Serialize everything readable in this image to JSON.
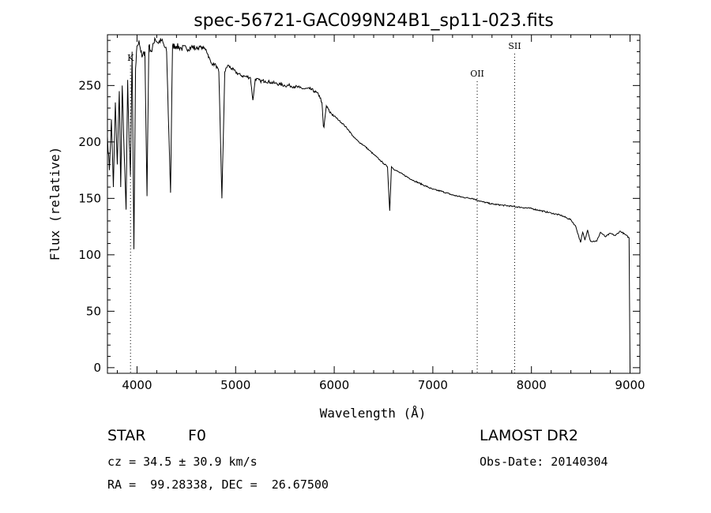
{
  "chart_data": {
    "type": "line",
    "title": "spec-56721-GAC099N24B1_sp11-023.fits",
    "xlabel": "Wavelength (Å)",
    "ylabel": "Flux (relative)",
    "xlim": [
      3700,
      9100
    ],
    "ylim": [
      -5,
      295
    ],
    "xticks": [
      4000,
      5000,
      6000,
      7000,
      8000,
      9000
    ],
    "yticks": [
      0,
      50,
      100,
      150,
      200,
      250
    ],
    "grid": false,
    "series": [
      {
        "x": [
          3700,
          3720,
          3740,
          3760,
          3780,
          3800,
          3820,
          3835,
          3850,
          3870,
          3889,
          3905,
          3920,
          3933,
          3950,
          3968,
          3985,
          4000,
          4020,
          4050,
          4080,
          4101,
          4120,
          4150,
          4180,
          4210,
          4250,
          4300,
          4340,
          4360,
          4400,
          4450,
          4500,
          4550,
          4600,
          4650,
          4700,
          4750,
          4800,
          4830,
          4861,
          4890,
          4920,
          4960,
          5000,
          5050,
          5100,
          5150,
          5175,
          5200,
          5250,
          5300,
          5350,
          5400,
          5450,
          5500,
          5550,
          5600,
          5650,
          5700,
          5750,
          5800,
          5850,
          5875,
          5890,
          5896,
          5920,
          5950,
          6000,
          6050,
          6100,
          6150,
          6200,
          6250,
          6300,
          6350,
          6400,
          6450,
          6500,
          6540,
          6563,
          6580,
          6620,
          6700,
          6800,
          6900,
          7000,
          7100,
          7200,
          7300,
          7400,
          7500,
          7600,
          7700,
          7800,
          7900,
          8000,
          8100,
          8200,
          8300,
          8400,
          8450,
          8498,
          8520,
          8542,
          8570,
          8600,
          8662,
          8700,
          8750,
          8800,
          8850,
          8900,
          8950,
          8990,
          9000
        ],
        "values": [
          205,
          175,
          220,
          160,
          235,
          180,
          245,
          160,
          250,
          190,
          140,
          255,
          200,
          170,
          280,
          105,
          265,
          285,
          290,
          275,
          280,
          152,
          285,
          280,
          292,
          288,
          290,
          280,
          155,
          285,
          285,
          283,
          283,
          284,
          283,
          284,
          282,
          270,
          268,
          262,
          150,
          262,
          268,
          265,
          262,
          259,
          258,
          257,
          237,
          256,
          254,
          254,
          253,
          252,
          251,
          250,
          250,
          249,
          248,
          247,
          247,
          245,
          241,
          235,
          214,
          213,
          232,
          227,
          223,
          219,
          215,
          210,
          204,
          200,
          197,
          193,
          189,
          185,
          181,
          178,
          139,
          178,
          175,
          171,
          166,
          162,
          158,
          156,
          153,
          151,
          150,
          147,
          145,
          144,
          143,
          142,
          141,
          139,
          137,
          135,
          131,
          125,
          111,
          120,
          113,
          122,
          112,
          112,
          120,
          116,
          119,
          117,
          121,
          118,
          115,
          0
        ]
      }
    ],
    "markers": [
      {
        "label": "K",
        "x": 3934
      },
      {
        "label": "OII",
        "x": 7450
      },
      {
        "label": "SII",
        "x": 7830
      }
    ]
  },
  "info": {
    "object_class": "STAR",
    "subclass": "F0",
    "survey": "LAMOST DR2",
    "velocity": "cz = 34.5 ± 30.9 km/s",
    "obs_date": "Obs-Date: 20140304",
    "coordinates": "RA =  99.28338, DEC =  26.67500"
  }
}
